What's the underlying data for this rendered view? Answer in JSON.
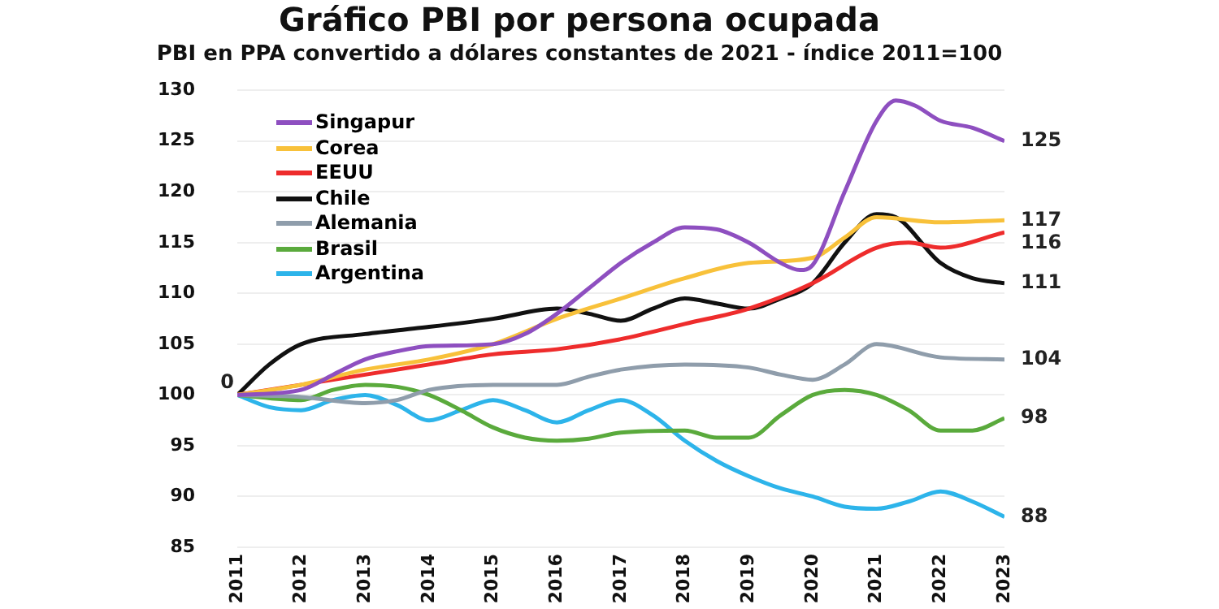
{
  "chart_data": {
    "type": "line",
    "title": "Gráfico PBI por persona ocupada",
    "subtitle": "PBI en PPA convertido a dólares constantes de 2021 - índice 2011=100",
    "xlim": [
      2011,
      2023
    ],
    "xticks": [
      2011,
      2012,
      2013,
      2014,
      2015,
      2016,
      2017,
      2018,
      2019,
      2020,
      2021,
      2022,
      2023
    ],
    "ylim": [
      85,
      130
    ],
    "yticks": [
      85,
      90,
      95,
      100,
      105,
      110,
      115,
      120,
      125,
      130
    ],
    "grid": "y",
    "legend": "top left",
    "marker": "none",
    "line_style": "solid",
    "series": [
      {
        "name": "Singapur",
        "color": "#8e4fc0",
        "x": [
          2011,
          2012,
          2012.5,
          2013,
          2013.5,
          2014,
          2015,
          2015.5,
          2016,
          2016.5,
          2017,
          2017.5,
          2018,
          2018.5,
          2019,
          2019.5,
          2019.8,
          2020,
          2020.5,
          2021,
          2021.3,
          2021.6,
          2022,
          2022.5,
          2023
        ],
        "values": [
          100,
          100.5,
          102,
          103.5,
          104.3,
          104.8,
          105,
          106,
          108,
          110.5,
          113,
          115,
          116.5,
          116.3,
          115,
          113,
          112.3,
          112.8,
          120,
          127,
          129,
          128.5,
          127,
          126.3,
          125
        ],
        "value_labels": [
          null,
          null,
          null,
          null,
          null,
          null,
          null,
          null,
          null,
          null,
          null,
          null,
          null,
          null,
          null,
          null,
          null,
          null,
          null,
          null,
          null,
          null,
          null,
          null,
          "125"
        ]
      },
      {
        "name": "Corea",
        "color": "#f8c13a",
        "x": [
          2011,
          2012,
          2013,
          2014,
          2015,
          2016,
          2017,
          2018,
          2019,
          2020,
          2020.5,
          2021,
          2022,
          2023
        ],
        "values": [
          100,
          101,
          102.5,
          103.5,
          105,
          107.5,
          109.5,
          111.5,
          113,
          113.5,
          115.5,
          117.5,
          117,
          117.2
        ],
        "value_labels": [
          null,
          null,
          null,
          null,
          null,
          null,
          null,
          null,
          null,
          null,
          null,
          null,
          null,
          "117"
        ]
      },
      {
        "name": "EEUU",
        "color": "#ee2c2c",
        "x": [
          2011,
          2012,
          2013,
          2014,
          2015,
          2016,
          2017,
          2018,
          2019,
          2020,
          2021,
          2021.5,
          2022,
          2023
        ],
        "values": [
          100,
          101,
          102,
          103,
          104,
          104.5,
          105.5,
          107,
          108.5,
          111,
          114.5,
          115,
          114.5,
          116
        ],
        "value_labels": [
          null,
          null,
          null,
          null,
          null,
          null,
          null,
          null,
          null,
          null,
          null,
          null,
          null,
          "116"
        ]
      },
      {
        "name": "Chile",
        "color": "#111111",
        "x": [
          2011,
          2011.5,
          2012,
          2013,
          2014,
          2015,
          2016,
          2016.5,
          2017,
          2017.5,
          2018,
          2018.5,
          2019,
          2019.5,
          2020,
          2020.5,
          2021,
          2021.3,
          2022,
          2022.5,
          2023
        ],
        "values": [
          100,
          103,
          105,
          106,
          106.7,
          107.5,
          108.5,
          108,
          107.3,
          108.5,
          109.5,
          109,
          108.5,
          109.5,
          111,
          115,
          117.8,
          117.5,
          113,
          111.5,
          111
        ],
        "value_labels": [
          null,
          null,
          null,
          null,
          null,
          null,
          null,
          null,
          null,
          null,
          null,
          null,
          null,
          null,
          null,
          null,
          null,
          null,
          null,
          null,
          "111"
        ]
      },
      {
        "name": "Alemania",
        "color": "#8f9dab",
        "x": [
          2011,
          2012,
          2013,
          2013.5,
          2014,
          2015,
          2016,
          2016.5,
          2017,
          2018,
          2019,
          2019.5,
          2020,
          2020.5,
          2021,
          2022,
          2023
        ],
        "values": [
          100,
          99.8,
          99.2,
          99.5,
          100.5,
          101,
          101,
          101.8,
          102.5,
          103,
          102.7,
          102,
          101.5,
          103,
          105,
          103.7,
          103.5
        ],
        "value_labels": [
          null,
          null,
          null,
          null,
          null,
          null,
          null,
          null,
          null,
          null,
          null,
          null,
          null,
          null,
          null,
          null,
          "104"
        ]
      },
      {
        "name": "Brasil",
        "color": "#5aaa3c",
        "x": [
          2011,
          2012,
          2012.5,
          2013,
          2013.5,
          2014,
          2014.5,
          2015,
          2015.5,
          2016,
          2016.5,
          2017,
          2018,
          2018.5,
          2019,
          2019.5,
          2020,
          2020.5,
          2021,
          2021.5,
          2022,
          2022.5,
          2023
        ],
        "values": [
          100,
          99.5,
          100.5,
          101,
          100.8,
          100,
          98.5,
          96.8,
          95.8,
          95.5,
          95.7,
          96.3,
          96.5,
          95.8,
          95.8,
          98,
          100,
          100.5,
          100,
          98.5,
          96.5,
          96.5,
          97.7
        ],
        "value_labels": [
          null,
          null,
          null,
          null,
          null,
          null,
          null,
          null,
          null,
          null,
          null,
          null,
          null,
          null,
          null,
          null,
          null,
          null,
          null,
          null,
          null,
          null,
          "98"
        ]
      },
      {
        "name": "Argentina",
        "color": "#2db4ea",
        "x": [
          2011,
          2011.5,
          2012,
          2012.5,
          2013,
          2013.5,
          2014,
          2014.5,
          2015,
          2015.5,
          2016,
          2016.5,
          2017,
          2017.5,
          2018,
          2018.5,
          2019,
          2019.5,
          2020,
          2020.5,
          2021,
          2021.5,
          2022,
          2022.5,
          2023
        ],
        "values": [
          100,
          98.8,
          98.5,
          99.5,
          100,
          99,
          97.5,
          98.5,
          99.5,
          98.5,
          97.3,
          98.5,
          99.5,
          98,
          95.5,
          93.5,
          92,
          90.8,
          90,
          89,
          88.8,
          89.5,
          90.5,
          89.5,
          88
        ],
        "value_labels": [
          null,
          null,
          null,
          null,
          null,
          null,
          null,
          null,
          null,
          null,
          null,
          null,
          null,
          null,
          null,
          null,
          null,
          null,
          null,
          null,
          null,
          null,
          null,
          null,
          "88"
        ]
      }
    ],
    "annotations": [
      "0"
    ]
  }
}
